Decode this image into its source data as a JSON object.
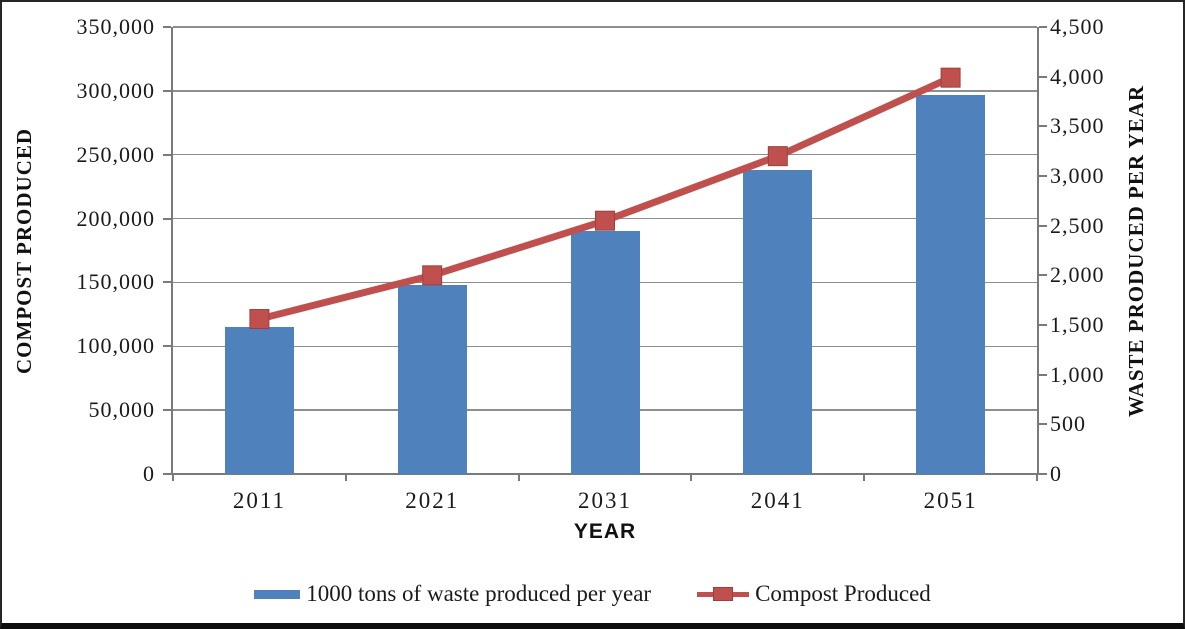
{
  "chart_data": {
    "type": "bar",
    "combo": "bar+line",
    "categories": [
      "2011",
      "2021",
      "2031",
      "2041",
      "2051"
    ],
    "series": [
      {
        "name": "1000 tons of waste produced per year",
        "type": "bar",
        "axis": "left",
        "color": "#4F81BD",
        "values": [
          115000,
          148000,
          190000,
          238000,
          297000
        ]
      },
      {
        "name": "Compost Produced",
        "type": "line",
        "axis": "right",
        "color": "#C0504D",
        "marker": "square",
        "values": [
          1560,
          2000,
          2550,
          3200,
          3990
        ]
      }
    ],
    "left_axis": {
      "title": "COMPOST PRODUCED",
      "min": 0,
      "max": 350000,
      "step": 50000,
      "tick_labels": [
        "0",
        "50,000",
        "100,000",
        "150,000",
        "200,000",
        "250,000",
        "300,000",
        "350,000"
      ]
    },
    "right_axis": {
      "title": "WASTE PRODUCED PER YEAR",
      "min": 0,
      "max": 4500,
      "step": 500,
      "tick_labels": [
        "0",
        "500",
        "1,000",
        "1,500",
        "2,000",
        "2,500",
        "3,000",
        "3,500",
        "4,000",
        "4,500"
      ]
    },
    "x_axis": {
      "title": "YEAR",
      "tick_labels": [
        "2011",
        "2021",
        "2031",
        "2041",
        "2051"
      ]
    },
    "legend": {
      "position": "bottom",
      "entries": [
        "1000 tons of waste produced per year",
        "Compost Produced"
      ]
    },
    "grid": "horizontal-major",
    "colors": {
      "bar_fill": "#4F81BD",
      "line_stroke": "#C0504D",
      "marker_border": "#9c403d",
      "gridline": "#8e8e8e",
      "axis_line": "#7a7a7a",
      "text": "#1a1a1a",
      "outer_border": "#262626"
    }
  }
}
